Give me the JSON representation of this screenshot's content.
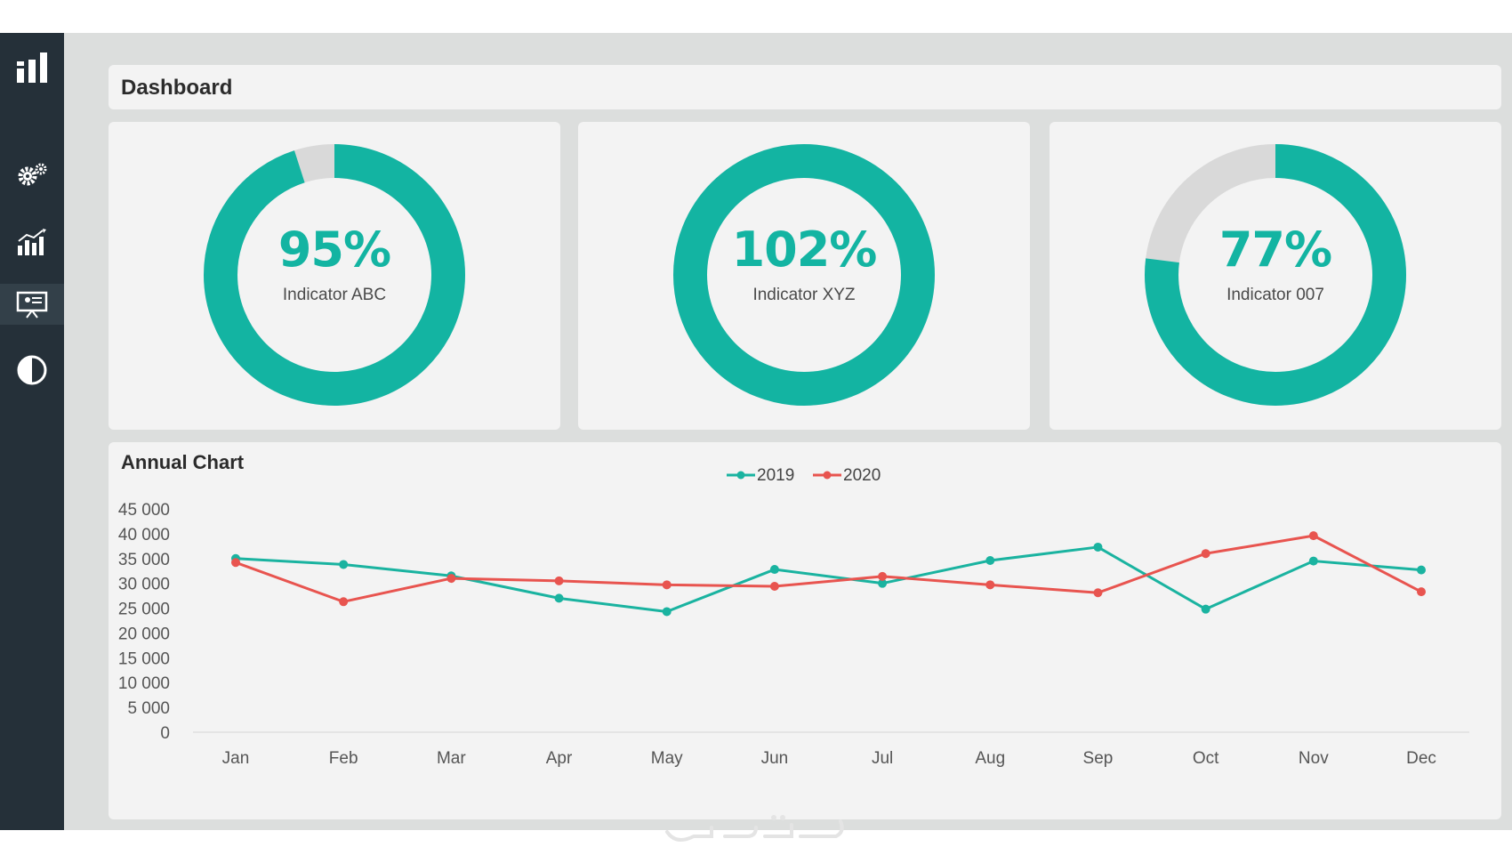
{
  "header": {
    "title": "Dashboard"
  },
  "sidebar": {
    "items": [
      {
        "icon": "bar-chart-logo-icon"
      },
      {
        "icon": "gears-icon"
      },
      {
        "icon": "growth-chart-icon"
      },
      {
        "icon": "presentation-board-icon",
        "active": true
      },
      {
        "icon": "contrast-icon"
      }
    ]
  },
  "kpis": [
    {
      "value": "95%",
      "label": "Indicator ABC",
      "fraction": 0.95
    },
    {
      "value": "102%",
      "label": "Indicator XYZ",
      "fraction": 1.0
    },
    {
      "value": "77%",
      "label": "Indicator 007",
      "fraction": 0.77
    }
  ],
  "colors": {
    "accent": "#13b4a2",
    "series_2019": "#1ab3a0",
    "series_2020": "#e8544f",
    "track": "#d9d9d9",
    "sidebar": "#253039"
  },
  "chart_data": {
    "type": "line",
    "title": "Annual Chart",
    "categories": [
      "Jan",
      "Feb",
      "Mar",
      "Apr",
      "May",
      "Jun",
      "Jul",
      "Aug",
      "Sep",
      "Oct",
      "Nov",
      "Dec"
    ],
    "series": [
      {
        "name": "2019",
        "values": [
          35000,
          33800,
          31500,
          27000,
          24300,
          32800,
          30000,
          34600,
          37300,
          24800,
          34500,
          32700
        ]
      },
      {
        "name": "2020",
        "values": [
          34200,
          26300,
          31000,
          30500,
          29700,
          29400,
          31400,
          29700,
          28100,
          36000,
          39600,
          28300
        ]
      }
    ],
    "y_ticks": [
      "45 000",
      "40 000",
      "35 000",
      "30 000",
      "25 000",
      "20 000",
      "15 000",
      "10 000",
      "5 000",
      "0"
    ],
    "ylim": [
      0,
      45000
    ],
    "legend": "top-center",
    "grid": false
  }
}
